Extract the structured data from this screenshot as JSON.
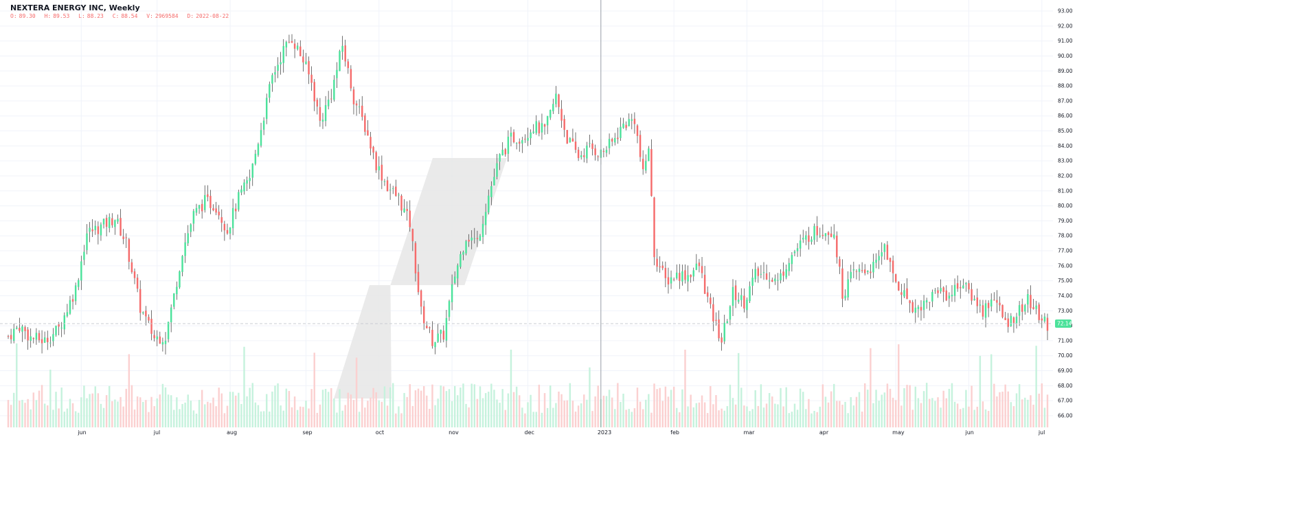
{
  "header": {
    "title": "NEXTERA ENERGY INC, Weekly",
    "ohlc": [
      {
        "label": "O:",
        "value": "89.30"
      },
      {
        "label": "H:",
        "value": "89.53"
      },
      {
        "label": "L:",
        "value": "88.23"
      },
      {
        "label": "C:",
        "value": "88.54"
      },
      {
        "label": "V:",
        "value": "2969584"
      },
      {
        "label": "D:",
        "value": "2022-08-22"
      }
    ]
  },
  "last_price_label": "72.14",
  "colors": {
    "up": "#4ce29b",
    "down": "#f56b6b",
    "vol_up": "#c6f2dd",
    "vol_down": "#fbd0d0",
    "grid": "#f0f3fa",
    "last_price_bg": "#4ce29b",
    "watermark": "#e6e6e6"
  },
  "chart_data": {
    "type": "candlestick",
    "title": "NEXTERA ENERGY INC, Weekly",
    "y_ticks": [
      "66.00",
      "67.00",
      "68.00",
      "69.00",
      "70.00",
      "71.00",
      "72.00",
      "73.00",
      "74.00",
      "75.00",
      "76.00",
      "77.00",
      "78.00",
      "79.00",
      "80.00",
      "81.00",
      "82.00",
      "83.00",
      "84.00",
      "85.00",
      "86.00",
      "87.00",
      "88.00",
      "89.00",
      "90.00",
      "91.00",
      "92.00",
      "93.00"
    ],
    "x_ticks": [
      "jun",
      "jul",
      "aug",
      "sep",
      "oct",
      "nov",
      "dec",
      "2023",
      "feb",
      "mar",
      "apr",
      "may",
      "jun",
      "jul"
    ],
    "ylim": [
      65.6,
      93.1
    ],
    "last_price": 72.14,
    "grid": true,
    "crosshair_at": "2023",
    "series": [
      {
        "name": "Price",
        "anchors": [
          [
            0,
            71.3
          ],
          [
            4,
            72.0
          ],
          [
            8,
            71.2
          ],
          [
            13,
            71.0
          ],
          [
            18,
            71.8
          ],
          [
            24,
            74.5
          ],
          [
            28,
            78.2
          ],
          [
            33,
            78.6
          ],
          [
            38,
            79.2
          ],
          [
            42,
            77.5
          ],
          [
            47,
            73.2
          ],
          [
            52,
            71.2
          ],
          [
            56,
            71.3
          ],
          [
            59,
            74.0
          ],
          [
            62,
            77.0
          ],
          [
            66,
            79.4
          ],
          [
            70,
            80.3
          ],
          [
            74,
            80.0
          ],
          [
            78,
            78.4
          ],
          [
            82,
            80.5
          ],
          [
            86,
            81.8
          ],
          [
            90,
            85.2
          ],
          [
            94,
            88.6
          ],
          [
            98,
            90.4
          ],
          [
            101,
            91.2
          ],
          [
            105,
            89.7
          ],
          [
            108,
            88.2
          ],
          [
            111,
            85.6
          ],
          [
            115,
            87.5
          ],
          [
            119,
            90.7
          ],
          [
            123,
            87.2
          ],
          [
            127,
            85.3
          ],
          [
            131,
            82.8
          ],
          [
            135,
            81.3
          ],
          [
            139,
            80.5
          ],
          [
            143,
            78.8
          ],
          [
            147,
            72.9
          ],
          [
            151,
            71.0
          ],
          [
            155,
            71.4
          ],
          [
            159,
            75.4
          ],
          [
            163,
            78.0
          ],
          [
            167,
            77.6
          ],
          [
            171,
            80.7
          ],
          [
            175,
            83.2
          ],
          [
            179,
            84.5
          ],
          [
            183,
            84.6
          ],
          [
            187,
            85.3
          ],
          [
            191,
            85.0
          ],
          [
            195,
            87.3
          ],
          [
            199,
            84.5
          ],
          [
            203,
            83.3
          ],
          [
            207,
            83.9
          ],
          [
            211,
            83.5
          ],
          [
            215,
            84.2
          ],
          [
            219,
            85.4
          ],
          [
            223,
            85.8
          ],
          [
            226,
            82.0
          ],
          [
            228,
            84.0
          ],
          [
            230,
            76.8
          ],
          [
            234,
            75.0
          ],
          [
            238,
            75.4
          ],
          [
            242,
            75.4
          ],
          [
            246,
            76.0
          ],
          [
            250,
            73.0
          ],
          [
            254,
            71.0
          ],
          [
            258,
            74.2
          ],
          [
            262,
            73.6
          ],
          [
            266,
            75.4
          ],
          [
            270,
            75.5
          ],
          [
            274,
            74.9
          ],
          [
            278,
            76.5
          ],
          [
            282,
            77.4
          ],
          [
            286,
            78.2
          ],
          [
            290,
            78.4
          ],
          [
            294,
            78.3
          ],
          [
            297,
            74.1
          ],
          [
            301,
            75.5
          ],
          [
            305,
            75.7
          ],
          [
            309,
            76.0
          ],
          [
            312,
            77.5
          ],
          [
            315,
            75.2
          ],
          [
            319,
            74.1
          ],
          [
            323,
            73.1
          ],
          [
            327,
            73.6
          ],
          [
            331,
            74.5
          ],
          [
            335,
            74.0
          ],
          [
            339,
            74.9
          ],
          [
            343,
            74.0
          ],
          [
            347,
            73.0
          ],
          [
            351,
            74.0
          ],
          [
            355,
            72.1
          ],
          [
            359,
            72.8
          ],
          [
            363,
            73.7
          ],
          [
            367,
            72.7
          ],
          [
            370,
            72.1
          ]
        ],
        "candle_count": 371,
        "date_range": [
          "2022-05",
          "2023-07"
        ]
      },
      {
        "name": "Volume",
        "relative_level": 1.0
      }
    ]
  }
}
